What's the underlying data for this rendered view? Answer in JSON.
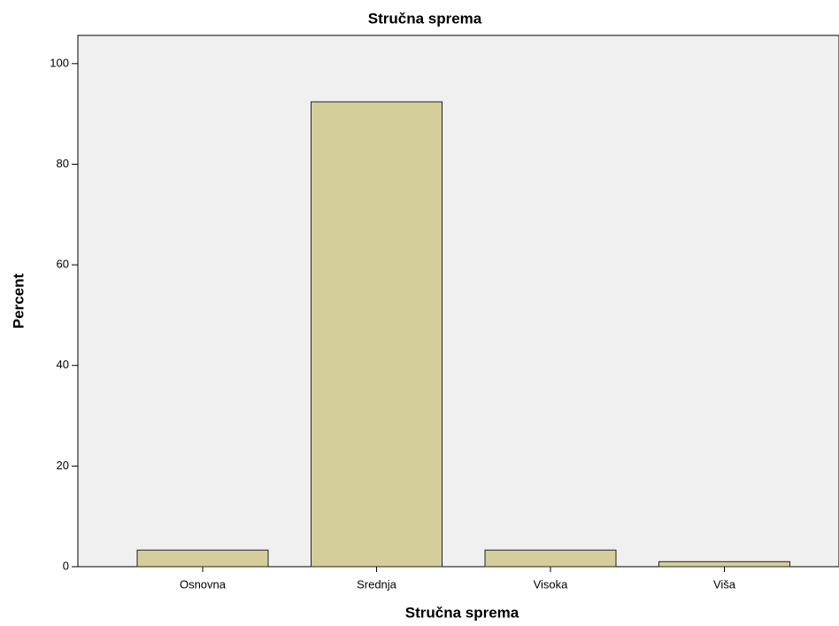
{
  "chart_data": {
    "type": "bar",
    "title": "Stručna sprema",
    "x_label": "Stručna sprema",
    "y_label": "Percent",
    "categories": [
      "Osnovna",
      "Srednja",
      "Visoka",
      "Viša"
    ],
    "values": [
      3.3,
      92.4,
      3.3,
      1.0
    ],
    "color": "#d4cf9a",
    "ylim": [
      0,
      105.6
    ],
    "yticks": [
      0,
      20,
      40,
      60,
      80,
      100
    ],
    "grid": false
  }
}
